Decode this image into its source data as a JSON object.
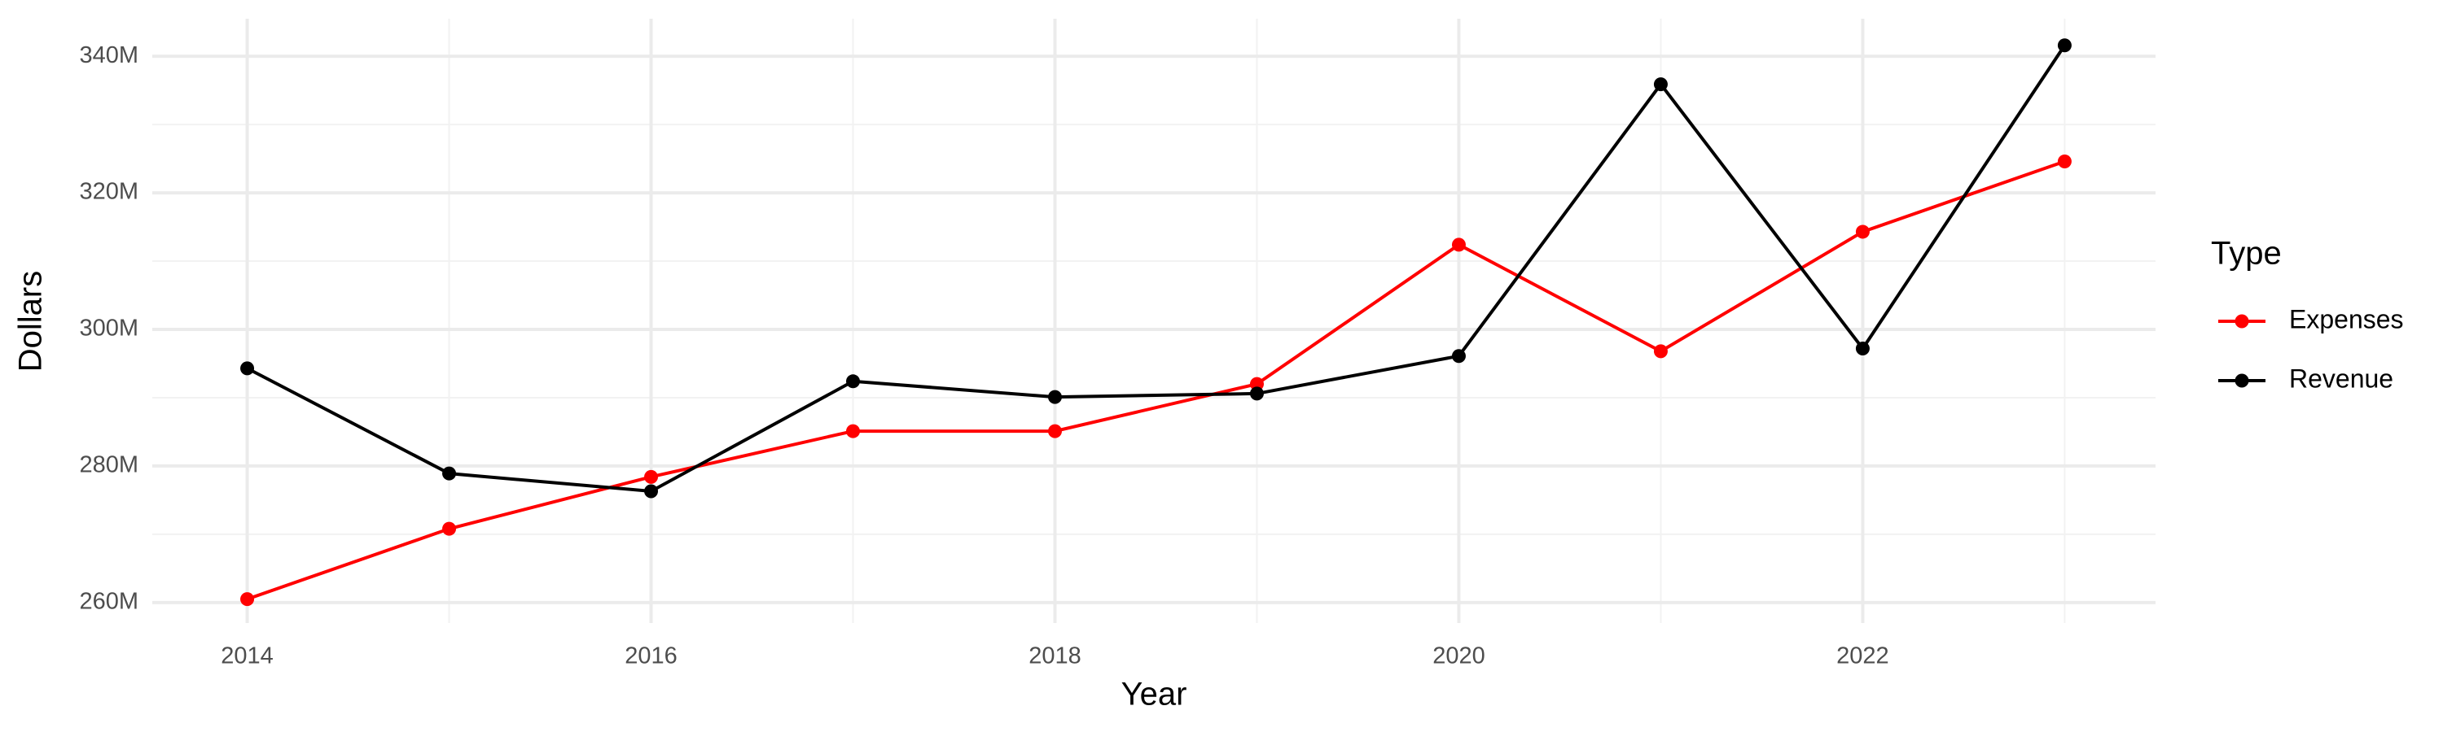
{
  "chart_data": {
    "type": "line",
    "x_label": "Year",
    "y_label": "Dollars",
    "x": [
      2014,
      2015,
      2016,
      2017,
      2018,
      2019,
      2020,
      2021,
      2022,
      2023
    ],
    "series": [
      {
        "name": "Expenses",
        "color": "#ff0000",
        "values": [
          260500000,
          270800000,
          278400000,
          285100000,
          285100000,
          292000000,
          312400000,
          296800000,
          314300000,
          324600000
        ]
      },
      {
        "name": "Revenue",
        "color": "#000000",
        "values": [
          294300000,
          278900000,
          276300000,
          292400000,
          290100000,
          290600000,
          296100000,
          335900000,
          297200000,
          341600000
        ]
      }
    ],
    "legend_title": "Type",
    "legend": "right",
    "xlim": [
      2013.53,
      2023.45
    ],
    "xticks": [
      2014,
      2016,
      2018,
      2020,
      2022
    ],
    "minor_xticks": [
      2015,
      2017,
      2019,
      2021,
      2023
    ],
    "ylim": [
      257000000,
      345500000
    ],
    "yticks": [
      {
        "value": 260000000,
        "label": "260M"
      },
      {
        "value": 280000000,
        "label": "280M"
      },
      {
        "value": 300000000,
        "label": "300M"
      },
      {
        "value": 320000000,
        "label": "320M"
      },
      {
        "value": 340000000,
        "label": "340M"
      }
    ],
    "minor_yticks": [
      270000000,
      290000000,
      310000000,
      330000000
    ],
    "grid": true
  }
}
